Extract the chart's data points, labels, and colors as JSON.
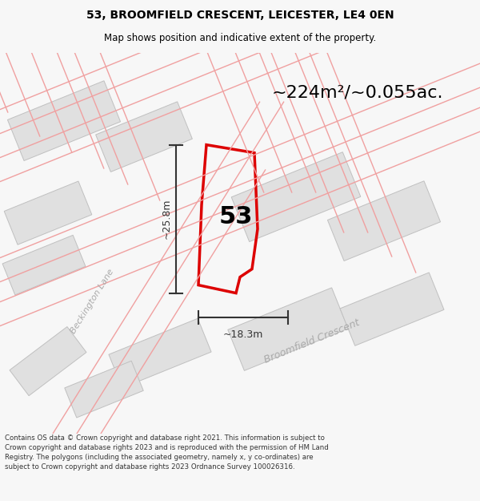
{
  "title_line1": "53, BROOMFIELD CRESCENT, LEICESTER, LE4 0EN",
  "title_line2": "Map shows position and indicative extent of the property.",
  "area_text": "~224m²/~0.055ac.",
  "number_label": "53",
  "dim_width": "~18.3m",
  "dim_height": "~25.8m",
  "street_name1": "Beckington Lane",
  "street_name2": "Broomfield Crescent",
  "footer_text": "Contains OS data © Crown copyright and database right 2021. This information is subject to Crown copyright and database rights 2023 and is reproduced with the permission of HM Land Registry. The polygons (including the associated geometry, namely x, y co-ordinates) are subject to Crown copyright and database rights 2023 Ordnance Survey 100026316.",
  "bg_color": "#f7f7f7",
  "map_bg": "#ffffff",
  "property_color": "#dd0000",
  "road_line_color": "#f0a0a0",
  "building_color": "#e0e0e0",
  "building_edge": "#c0c0c0",
  "text_color": "#000000",
  "footer_color": "#333333",
  "street_label_color": "#aaaaaa",
  "dim_color": "#333333"
}
